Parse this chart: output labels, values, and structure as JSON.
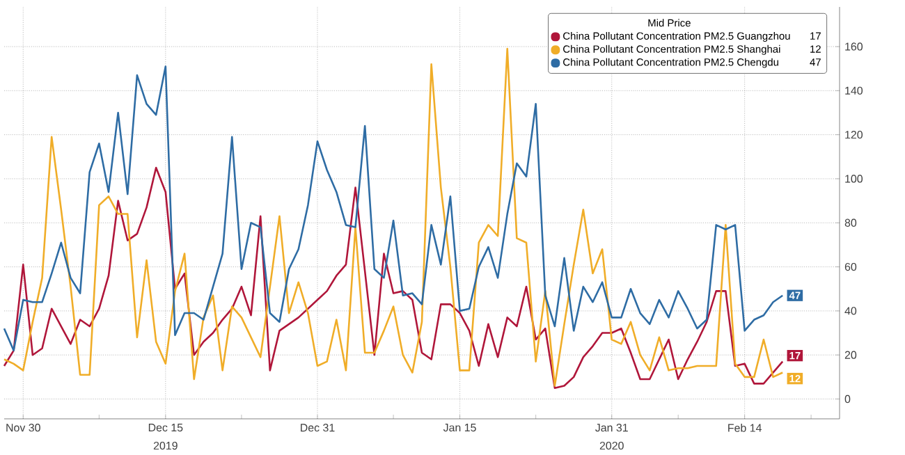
{
  "chart_data": {
    "type": "line",
    "x": [
      "2019-11-28",
      "2019-11-29",
      "2019-11-30",
      "2019-12-01",
      "2019-12-02",
      "2019-12-03",
      "2019-12-04",
      "2019-12-05",
      "2019-12-06",
      "2019-12-07",
      "2019-12-08",
      "2019-12-09",
      "2019-12-10",
      "2019-12-11",
      "2019-12-12",
      "2019-12-13",
      "2019-12-14",
      "2019-12-15",
      "2019-12-16",
      "2019-12-17",
      "2019-12-18",
      "2019-12-19",
      "2019-12-20",
      "2019-12-21",
      "2019-12-22",
      "2019-12-23",
      "2019-12-24",
      "2019-12-25",
      "2019-12-26",
      "2019-12-27",
      "2019-12-28",
      "2019-12-29",
      "2019-12-30",
      "2019-12-31",
      "2020-01-01",
      "2020-01-02",
      "2020-01-03",
      "2020-01-04",
      "2020-01-05",
      "2020-01-06",
      "2020-01-07",
      "2020-01-08",
      "2020-01-09",
      "2020-01-10",
      "2020-01-11",
      "2020-01-12",
      "2020-01-13",
      "2020-01-14",
      "2020-01-15",
      "2020-01-16",
      "2020-01-17",
      "2020-01-18",
      "2020-01-19",
      "2020-01-20",
      "2020-01-21",
      "2020-01-22",
      "2020-01-23",
      "2020-01-24",
      "2020-01-25",
      "2020-01-26",
      "2020-01-27",
      "2020-01-28",
      "2020-01-29",
      "2020-01-30",
      "2020-01-31",
      "2020-02-01",
      "2020-02-02",
      "2020-02-03",
      "2020-02-04",
      "2020-02-05",
      "2020-02-06",
      "2020-02-07",
      "2020-02-08",
      "2020-02-09",
      "2020-02-10",
      "2020-02-11",
      "2020-02-12",
      "2020-02-13",
      "2020-02-14",
      "2020-02-15",
      "2020-02-16",
      "2020-02-17",
      "2020-02-18"
    ],
    "series": [
      {
        "name": "China Pollutant Concentration PM2.5 Guangzhou",
        "color": "#b0163a",
        "values": [
          15,
          22,
          61,
          20,
          23,
          41,
          33,
          25,
          36,
          33,
          41,
          56,
          90,
          72,
          75,
          87,
          105,
          94,
          50,
          57,
          20,
          26,
          30,
          36,
          41,
          51,
          38,
          83,
          13,
          31,
          34,
          37,
          41,
          45,
          49,
          56,
          61,
          96,
          58,
          20,
          66,
          48,
          49,
          45,
          21,
          18,
          43,
          43,
          39,
          31,
          15,
          34,
          19,
          37,
          33,
          51,
          27,
          32,
          5,
          6,
          10,
          19,
          24,
          30,
          30,
          32,
          21,
          9,
          9,
          18,
          27,
          9,
          18,
          26,
          35,
          49,
          49,
          15,
          16,
          7,
          7,
          12,
          17
        ],
        "value_labels": [
          null,
          null,
          null,
          null,
          null,
          null,
          null,
          null,
          null,
          null,
          null,
          null,
          null,
          null,
          null,
          null,
          null,
          null,
          null,
          null,
          null,
          null,
          null,
          null,
          null,
          null,
          null,
          null,
          null,
          null,
          null,
          null,
          null,
          null,
          null,
          null,
          null,
          null,
          null,
          null,
          null,
          null,
          null,
          null,
          null,
          null,
          null,
          null,
          null,
          null,
          null,
          null,
          null,
          null,
          null,
          null,
          null,
          null,
          null,
          null,
          null,
          null,
          null,
          null,
          null,
          null,
          null,
          null,
          null,
          null,
          null,
          null,
          null,
          null,
          null,
          null,
          null,
          null,
          null,
          null,
          null,
          null,
          "17"
        ]
      },
      {
        "name": "China Pollutant Concentration PM2.5 Shanghai",
        "color": "#f0ad28",
        "values": [
          18,
          16,
          13,
          35,
          55,
          119,
          86,
          51,
          11,
          11,
          88,
          92,
          84,
          84,
          28,
          63,
          26,
          16,
          49,
          66,
          9,
          37,
          47,
          13,
          42,
          37,
          28,
          19,
          51,
          83,
          39,
          53,
          39,
          15,
          17,
          36,
          13,
          78,
          21,
          21,
          31,
          42,
          20,
          12,
          35,
          152,
          96,
          60,
          13,
          13,
          71,
          79,
          74,
          159,
          73,
          71,
          17,
          49,
          6,
          34,
          61,
          86,
          57,
          68,
          27,
          25,
          35,
          20,
          13,
          28,
          13,
          14,
          14,
          15,
          15,
          15,
          79,
          16,
          10,
          10,
          27,
          10,
          12
        ],
        "value_labels": [
          null,
          null,
          null,
          null,
          null,
          null,
          null,
          null,
          null,
          null,
          null,
          null,
          null,
          null,
          null,
          null,
          null,
          null,
          null,
          null,
          null,
          null,
          null,
          null,
          null,
          null,
          null,
          null,
          null,
          null,
          null,
          null,
          null,
          null,
          null,
          null,
          null,
          null,
          null,
          null,
          null,
          null,
          null,
          null,
          null,
          null,
          null,
          null,
          null,
          null,
          null,
          null,
          null,
          null,
          null,
          null,
          null,
          null,
          null,
          null,
          null,
          null,
          null,
          null,
          null,
          null,
          null,
          null,
          null,
          null,
          null,
          null,
          null,
          null,
          null,
          null,
          null,
          null,
          null,
          null,
          null,
          null,
          "12"
        ]
      },
      {
        "name": "China Pollutant Concentration PM2.5 Chengdu",
        "color": "#2e6ca4",
        "values": [
          32,
          22,
          45,
          44,
          44,
          57,
          71,
          55,
          48,
          103,
          116,
          94,
          130,
          93,
          147,
          134,
          129,
          151,
          29,
          39,
          39,
          36,
          51,
          66,
          119,
          59,
          80,
          78,
          39,
          35,
          59,
          68,
          88,
          117,
          104,
          94,
          79,
          78,
          124,
          59,
          55,
          81,
          47,
          48,
          43,
          79,
          61,
          92,
          40,
          41,
          60,
          69,
          55,
          84,
          107,
          101,
          134,
          47,
          33,
          64,
          31,
          51,
          44,
          53,
          37,
          37,
          50,
          39,
          34,
          45,
          37,
          49,
          41,
          32,
          36,
          79,
          77,
          79,
          31,
          36,
          38,
          44,
          47
        ],
        "value_labels": [
          null,
          null,
          null,
          null,
          null,
          null,
          null,
          null,
          null,
          null,
          null,
          null,
          null,
          null,
          null,
          null,
          null,
          null,
          null,
          null,
          null,
          null,
          null,
          null,
          null,
          null,
          null,
          null,
          null,
          null,
          null,
          null,
          null,
          null,
          null,
          null,
          null,
          null,
          null,
          null,
          null,
          null,
          null,
          null,
          null,
          null,
          null,
          null,
          null,
          null,
          null,
          null,
          null,
          null,
          null,
          null,
          null,
          null,
          null,
          null,
          null,
          null,
          null,
          null,
          null,
          null,
          null,
          null,
          null,
          null,
          null,
          null,
          null,
          null,
          null,
          null,
          null,
          null,
          null,
          null,
          null,
          null,
          "47"
        ]
      }
    ],
    "xlim": [
      "2019-11-28",
      "2020-02-24"
    ],
    "xticks": [
      {
        "value": "2019-11-30",
        "label": "Nov 30"
      },
      {
        "value": "2019-12-08",
        "label": null
      },
      {
        "value": "2019-12-15",
        "label": "Dec 15"
      },
      {
        "value": "2019-12-23",
        "label": null
      },
      {
        "value": "2019-12-31",
        "label": "Dec 31"
      },
      {
        "value": "2020-01-08",
        "label": null
      },
      {
        "value": "2020-01-15",
        "label": "Jan 15"
      },
      {
        "value": "2020-01-23",
        "label": null
      },
      {
        "value": "2020-01-31",
        "label": "Jan 31"
      },
      {
        "value": "2020-02-07",
        "label": null
      },
      {
        "value": "2020-02-14",
        "label": "Feb 14"
      },
      {
        "value": "2020-02-21",
        "label": null
      }
    ],
    "ylim": [
      -9,
      178
    ],
    "yticks": [
      0,
      20,
      40,
      60,
      80,
      100,
      120,
      140,
      160
    ],
    "grid": true,
    "legend": "top right",
    "legend_title": "Mid Price",
    "annotations": [
      "2019",
      "2020"
    ]
  }
}
